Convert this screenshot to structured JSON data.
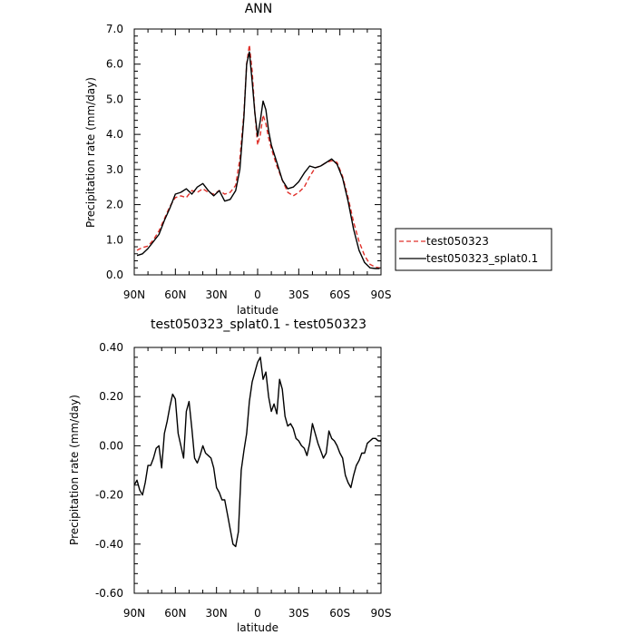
{
  "chart_data": [
    {
      "type": "line",
      "title": "ANN",
      "xlabel": "latitude",
      "ylabel": "Precipitation rate (mm/day)",
      "xlim": [
        90,
        -90
      ],
      "ylim": [
        0,
        7
      ],
      "yticks": [
        0,
        1,
        2,
        3,
        4,
        5,
        6,
        7
      ],
      "ytick_labels": [
        "0.0",
        "1.0",
        "2.0",
        "3.0",
        "4.0",
        "5.0",
        "6.0",
        "7.0"
      ],
      "xticks": [
        90,
        60,
        30,
        0,
        -30,
        -60,
        -90
      ],
      "xtick_labels": [
        "90N",
        "60N",
        "30N",
        "0",
        "30S",
        "60S",
        "90S"
      ],
      "legend_position": "right",
      "series": [
        {
          "name": "test050323",
          "color": "#e0302a",
          "dash": "dashed",
          "x": [
            88,
            84,
            80,
            76,
            72,
            68,
            64,
            60,
            56,
            52,
            48,
            44,
            40,
            36,
            32,
            28,
            24,
            20,
            16,
            13,
            10,
            8,
            6,
            4,
            2,
            0,
            -2,
            -4,
            -6,
            -8,
            -10,
            -14,
            -18,
            -22,
            -26,
            -30,
            -34,
            -38,
            -42,
            -46,
            -50,
            -54,
            -58,
            -62,
            -66,
            -70,
            -74,
            -78,
            -82,
            -86,
            -89
          ],
          "y": [
            0.7,
            0.78,
            0.82,
            1.0,
            1.25,
            1.6,
            1.95,
            2.2,
            2.25,
            2.2,
            2.4,
            2.35,
            2.45,
            2.35,
            2.3,
            2.4,
            2.3,
            2.35,
            2.55,
            3.3,
            4.6,
            6.0,
            6.55,
            5.8,
            4.6,
            3.7,
            4.0,
            4.55,
            4.3,
            3.9,
            3.6,
            3.1,
            2.7,
            2.35,
            2.25,
            2.35,
            2.5,
            2.8,
            3.05,
            3.1,
            3.2,
            3.25,
            3.2,
            2.8,
            2.2,
            1.5,
            0.95,
            0.55,
            0.3,
            0.22,
            0.2
          ]
        },
        {
          "name": "test050323_splat0.1",
          "color": "#000000",
          "dash": "solid",
          "x": [
            88,
            84,
            80,
            76,
            72,
            68,
            64,
            60,
            56,
            52,
            48,
            44,
            40,
            36,
            32,
            28,
            24,
            20,
            16,
            13,
            10,
            8,
            6,
            4,
            2,
            0,
            -2,
            -4,
            -6,
            -8,
            -10,
            -14,
            -18,
            -22,
            -26,
            -30,
            -34,
            -38,
            -42,
            -46,
            -50,
            -54,
            -58,
            -62,
            -66,
            -70,
            -74,
            -78,
            -82,
            -86,
            -89
          ],
          "y": [
            0.55,
            0.6,
            0.75,
            0.95,
            1.15,
            1.55,
            1.9,
            2.3,
            2.35,
            2.45,
            2.3,
            2.5,
            2.6,
            2.4,
            2.25,
            2.4,
            2.1,
            2.15,
            2.4,
            3.0,
            4.5,
            6.0,
            6.35,
            5.5,
            4.6,
            3.95,
            4.4,
            4.95,
            4.7,
            4.1,
            3.7,
            3.2,
            2.7,
            2.45,
            2.5,
            2.65,
            2.9,
            3.1,
            3.05,
            3.1,
            3.2,
            3.3,
            3.15,
            2.75,
            2.1,
            1.3,
            0.7,
            0.35,
            0.2,
            0.18,
            0.18
          ]
        }
      ]
    },
    {
      "type": "line",
      "title": "test050323_splat0.1 - test050323",
      "xlabel": "latitude",
      "ylabel": "Precipitation rate (mm/day)",
      "xlim": [
        90,
        -90
      ],
      "ylim": [
        -0.6,
        0.4
      ],
      "yticks": [
        -0.6,
        -0.4,
        -0.2,
        0,
        0.2,
        0.4
      ],
      "ytick_labels": [
        "-0.60",
        "-0.40",
        "-0.20",
        "0.00",
        "0.20",
        "0.40"
      ],
      "xticks": [
        90,
        60,
        30,
        0,
        -30,
        -60,
        -90
      ],
      "xtick_labels": [
        "90N",
        "60N",
        "30N",
        "0",
        "30S",
        "60S",
        "90S"
      ],
      "series": [
        {
          "color": "#000000",
          "dash": "solid",
          "x": [
            90,
            88,
            86,
            84,
            82,
            80,
            78,
            76,
            74,
            72,
            70,
            68,
            66,
            64,
            62,
            60,
            58,
            56,
            54,
            52,
            50,
            48,
            46,
            44,
            42,
            40,
            38,
            36,
            34,
            32,
            30,
            28,
            26,
            24,
            22,
            20,
            18,
            16,
            14,
            12,
            10,
            8,
            6,
            4,
            2,
            0,
            -2,
            -4,
            -6,
            -8,
            -10,
            -12,
            -14,
            -16,
            -18,
            -20,
            -22,
            -24,
            -26,
            -28,
            -30,
            -32,
            -34,
            -36,
            -38,
            -40,
            -42,
            -44,
            -46,
            -48,
            -50,
            -52,
            -54,
            -56,
            -58,
            -60,
            -62,
            -64,
            -66,
            -68,
            -70,
            -72,
            -74,
            -76,
            -78,
            -80,
            -82,
            -84,
            -86,
            -88,
            -90
          ],
          "y": [
            -0.16,
            -0.14,
            -0.18,
            -0.2,
            -0.15,
            -0.08,
            -0.08,
            -0.05,
            -0.01,
            0.0,
            -0.09,
            0.05,
            0.1,
            0.16,
            0.21,
            0.19,
            0.05,
            0.0,
            -0.05,
            0.14,
            0.18,
            0.07,
            -0.05,
            -0.07,
            -0.04,
            0.0,
            -0.03,
            -0.04,
            -0.05,
            -0.09,
            -0.17,
            -0.19,
            -0.22,
            -0.22,
            -0.28,
            -0.34,
            -0.4,
            -0.41,
            -0.35,
            -0.1,
            -0.02,
            0.05,
            0.18,
            0.26,
            0.3,
            0.34,
            0.36,
            0.27,
            0.3,
            0.2,
            0.14,
            0.17,
            0.13,
            0.27,
            0.23,
            0.12,
            0.08,
            0.09,
            0.07,
            0.03,
            0.02,
            0.0,
            -0.01,
            -0.04,
            0.01,
            0.09,
            0.05,
            0.01,
            -0.02,
            -0.05,
            -0.03,
            0.06,
            0.03,
            0.02,
            0.0,
            -0.03,
            -0.05,
            -0.12,
            -0.15,
            -0.17,
            -0.12,
            -0.08,
            -0.06,
            -0.03,
            -0.03,
            0.01,
            0.02,
            0.03,
            0.03,
            0.02,
            0.02
          ]
        }
      ]
    }
  ]
}
